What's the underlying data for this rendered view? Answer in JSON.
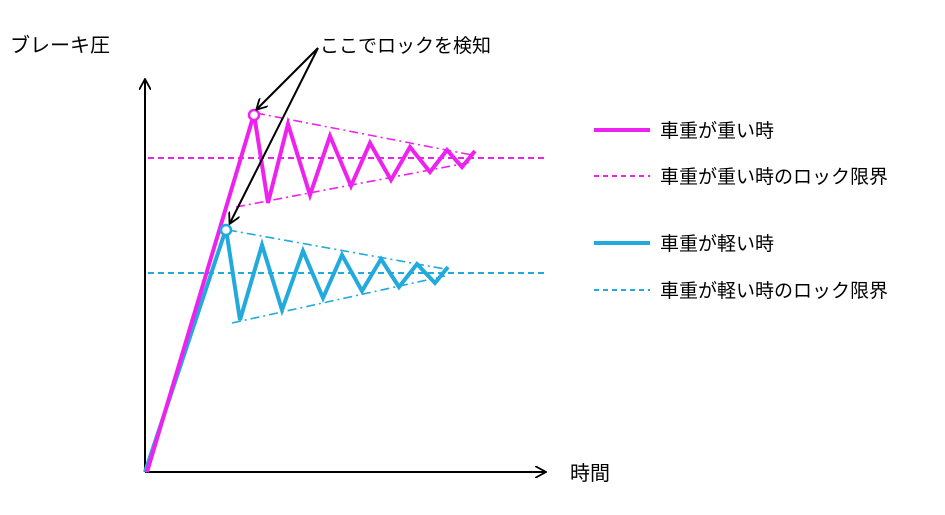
{
  "y_axis_label": "ブレーキ圧",
  "x_axis_label": "時間",
  "callout_text": "ここでロックを検知",
  "legend": [
    {
      "label": "車重が重い時",
      "style": "solid",
      "color": "#ee22ee"
    },
    {
      "label": "車重が重い時のロック限界",
      "style": "dashed",
      "color": "#ee22ee"
    },
    {
      "label": "車重が軽い時",
      "style": "solid",
      "color": "#22aadd"
    },
    {
      "label": "車重が軽い時のロック限界",
      "style": "dashed",
      "color": "#22aadd"
    }
  ],
  "colors": {
    "heavy": "#ee22ee",
    "light": "#22aadd",
    "axis": "#000000",
    "envelope": "dash-dot"
  }
}
